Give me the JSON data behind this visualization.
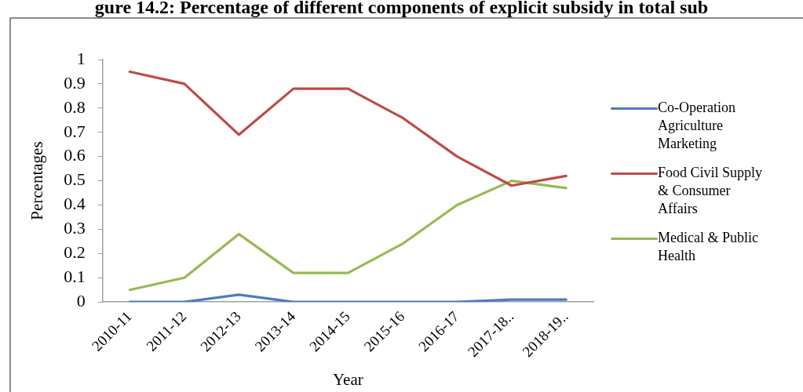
{
  "chart_data": {
    "type": "line",
    "title": "gure 14.2: Percentage of different components of explicit subsidy in total sub",
    "xlabel": "Year",
    "ylabel": "Percentages",
    "categories": [
      "2010-11",
      "2011-12",
      "2012-13",
      "2013-14",
      "2014-15",
      "2015-16",
      "2016-17",
      "2017-18..",
      "2018-19.."
    ],
    "series": [
      {
        "name": "Co-Operation Agriculture Marketing",
        "color": "#4a7ebb",
        "values": [
          0,
          0,
          0.03,
          0,
          0,
          0,
          0,
          0.01,
          0.01
        ]
      },
      {
        "name": "Food Civil Supply & Consumer Affairs",
        "color": "#be4b48",
        "values": [
          0.95,
          0.9,
          0.69,
          0.88,
          0.88,
          0.76,
          0.6,
          0.48,
          0.52
        ]
      },
      {
        "name": "Medical & Public Health",
        "color": "#98b954",
        "values": [
          0.05,
          0.1,
          0.28,
          0.12,
          0.12,
          0.24,
          0.4,
          0.5,
          0.47
        ]
      }
    ],
    "ylim": [
      0,
      1
    ],
    "yticks": [
      0,
      0.1,
      0.2,
      0.3,
      0.4,
      0.5,
      0.6,
      0.7,
      0.8,
      0.9,
      1
    ],
    "grid": false,
    "legend": "right",
    "marker": "none",
    "line_style": "solid"
  }
}
